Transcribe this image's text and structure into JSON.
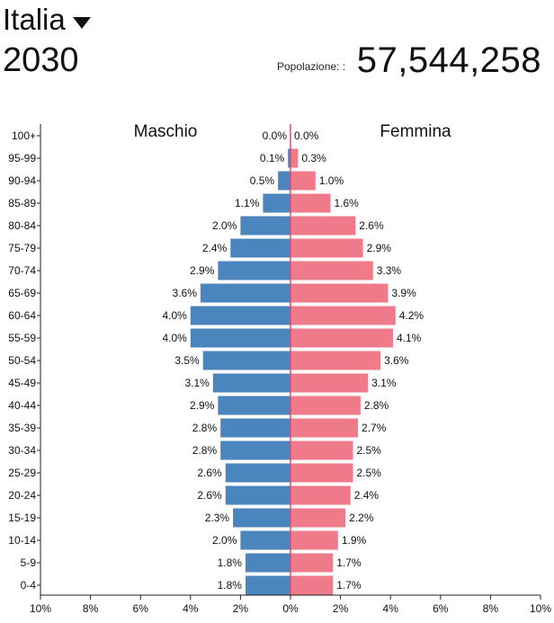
{
  "header": {
    "country": "Italia",
    "year": "2030",
    "population_label": "Popolazione: :",
    "population_value": "57,544,258"
  },
  "colors": {
    "male": "#4a86bd",
    "female": "#ef7a8a",
    "axis": "#222222",
    "center_line": "#d64f6d"
  },
  "icons": {
    "dropdown": "caret-down-icon"
  },
  "chart_data": {
    "type": "bar",
    "orientation": "horizontal-butterfly",
    "categories": [
      "100+",
      "95-99",
      "90-94",
      "85-89",
      "80-84",
      "75-79",
      "70-74",
      "65-69",
      "60-64",
      "55-59",
      "50-54",
      "45-49",
      "40-44",
      "35-39",
      "30-34",
      "25-29",
      "20-24",
      "15-19",
      "10-14",
      "5-9",
      "0-4"
    ],
    "series": [
      {
        "name": "Maschio",
        "values": [
          0.0,
          0.1,
          0.5,
          1.1,
          2.0,
          2.4,
          2.9,
          3.6,
          4.0,
          4.0,
          3.5,
          3.1,
          2.9,
          2.8,
          2.8,
          2.6,
          2.6,
          2.3,
          2.0,
          1.8,
          1.8
        ],
        "labels": [
          "0.0%",
          "0.1%",
          "0.5%",
          "1.1%",
          "2.0%",
          "2.4%",
          "2.9%",
          "3.6%",
          "4.0%",
          "4.0%",
          "3.5%",
          "3.1%",
          "2.9%",
          "2.8%",
          "2.8%",
          "2.6%",
          "2.6%",
          "2.3%",
          "2.0%",
          "1.8%",
          "1.8%"
        ]
      },
      {
        "name": "Femmina",
        "values": [
          0.0,
          0.3,
          1.0,
          1.6,
          2.6,
          2.9,
          3.3,
          3.9,
          4.2,
          4.1,
          3.6,
          3.1,
          2.8,
          2.7,
          2.5,
          2.5,
          2.4,
          2.2,
          1.9,
          1.7,
          1.7
        ],
        "labels": [
          "0.0%",
          "0.3%",
          "1.0%",
          "1.6%",
          "2.6%",
          "2.9%",
          "3.3%",
          "3.9%",
          "4.2%",
          "4.1%",
          "3.6%",
          "3.1%",
          "2.8%",
          "2.7%",
          "2.5%",
          "2.5%",
          "2.4%",
          "2.2%",
          "1.9%",
          "1.7%",
          "1.7%"
        ]
      }
    ],
    "xlim": [
      -10,
      10
    ],
    "xticks": [
      -10,
      -8,
      -6,
      -4,
      -2,
      0,
      2,
      4,
      6,
      8,
      10
    ],
    "xtick_labels": [
      "10%",
      "8%",
      "6%",
      "4%",
      "2%",
      "0%",
      "2%",
      "4%",
      "6%",
      "8%",
      "10%"
    ],
    "xlabel": "",
    "ylabel": "",
    "grid": false
  }
}
